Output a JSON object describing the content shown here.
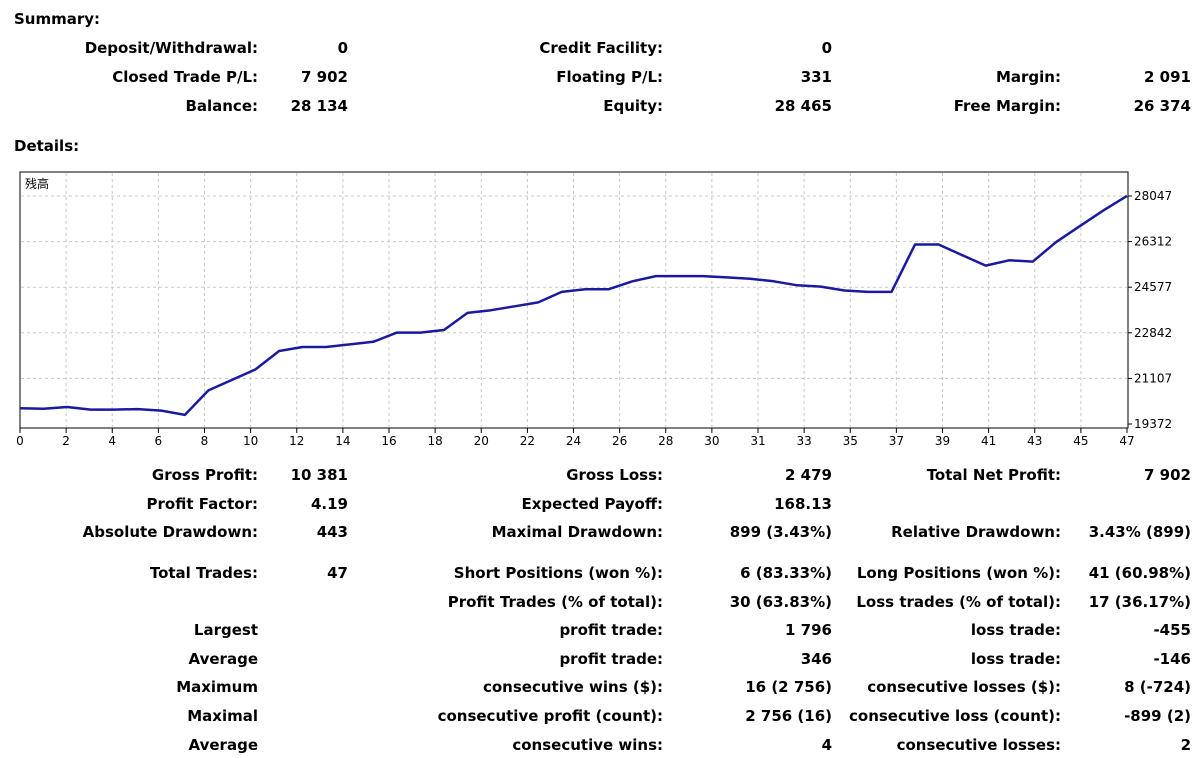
{
  "summary": {
    "title": "Summary:",
    "rows": [
      [
        {
          "label": "Deposit/Withdrawal:",
          "value": "0"
        },
        {
          "label": "Credit Facility:",
          "value": "0"
        },
        {
          "label": "",
          "value": ""
        }
      ],
      [
        {
          "label": "Closed Trade P/L:",
          "value": "7 902"
        },
        {
          "label": "Floating P/L:",
          "value": "331"
        },
        {
          "label": "Margin:",
          "value": "2 091"
        }
      ],
      [
        {
          "label": "Balance:",
          "value": "28 134"
        },
        {
          "label": "Equity:",
          "value": "28 465"
        },
        {
          "label": "Free Margin:",
          "value": "26 374"
        }
      ]
    ]
  },
  "details": {
    "title": "Details:",
    "rows": [
      [
        {
          "label": "Gross Profit:",
          "value": "10 381"
        },
        {
          "label": "Gross Loss:",
          "value": "2 479"
        },
        {
          "label": "Total Net Profit:",
          "value": "7 902"
        }
      ],
      [
        {
          "label": "Profit Factor:",
          "value": "4.19"
        },
        {
          "label": "Expected Payoff:",
          "value": "168.13"
        },
        {
          "label": "",
          "value": ""
        }
      ],
      [
        {
          "label": "Absolute Drawdown:",
          "value": "443"
        },
        {
          "label": "Maximal Drawdown:",
          "value": "899 (3.43%)"
        },
        {
          "label": "Relative Drawdown:",
          "value": "3.43% (899)"
        }
      ],
      [
        {
          "label": "Total Trades:",
          "value": "47"
        },
        {
          "label": "Short Positions (won %):",
          "value": "6 (83.33%)"
        },
        {
          "label": "Long Positions (won %):",
          "value": "41 (60.98%)"
        }
      ],
      [
        {
          "label": "",
          "value": ""
        },
        {
          "label": "Profit Trades (% of total):",
          "value": "30 (63.83%)"
        },
        {
          "label": "Loss trades (% of total):",
          "value": "17 (36.17%)"
        }
      ],
      [
        {
          "label": "Largest",
          "value": ""
        },
        {
          "label": "profit trade:",
          "value": "1 796"
        },
        {
          "label": "loss trade:",
          "value": "-455"
        }
      ],
      [
        {
          "label": "Average",
          "value": ""
        },
        {
          "label": "profit trade:",
          "value": "346"
        },
        {
          "label": "loss trade:",
          "value": "-146"
        }
      ],
      [
        {
          "label": "Maximum",
          "value": ""
        },
        {
          "label": "consecutive wins ($):",
          "value": "16 (2 756)"
        },
        {
          "label": "consecutive losses ($):",
          "value": "8 (-724)"
        }
      ],
      [
        {
          "label": "Maximal",
          "value": ""
        },
        {
          "label": "consecutive profit (count):",
          "value": "2 756 (16)"
        },
        {
          "label": "consecutive loss (count):",
          "value": "-899 (2)"
        }
      ],
      [
        {
          "label": "Average",
          "value": ""
        },
        {
          "label": "consecutive wins:",
          "value": "4"
        },
        {
          "label": "consecutive losses:",
          "value": "2"
        }
      ]
    ]
  },
  "chart_data": {
    "type": "line",
    "title": "残高",
    "line_color": "#1a1a9e",
    "grid": true,
    "xlim": [
      0,
      47
    ],
    "ylim": [
      19372,
      28047
    ],
    "y_ticks": [
      "28047",
      "26312",
      "24577",
      "22842",
      "21107",
      "19372"
    ],
    "x_ticks": [
      "0",
      "2",
      "4",
      "6",
      "8",
      "10",
      "12",
      "14",
      "16",
      "18",
      "20",
      "22",
      "24",
      "26",
      "28",
      "30",
      "31",
      "33",
      "35",
      "37",
      "39",
      "41",
      "43",
      "45",
      "47"
    ],
    "series": [
      {
        "values": [
          19970,
          19950,
          20020,
          19920,
          19920,
          19940,
          19880,
          19720,
          20650,
          21050,
          21450,
          22150,
          22300,
          22300,
          22400,
          22500,
          22850,
          22850,
          22950,
          23600,
          23700,
          23850,
          24000,
          24400,
          24500,
          24500,
          24800,
          25000,
          25000,
          25000,
          24950,
          24900,
          24800,
          24650,
          24600,
          24450,
          24400,
          24400,
          26200,
          26200,
          25800,
          25400,
          25600,
          25550,
          26300,
          26900,
          27500,
          28050
        ]
      }
    ]
  }
}
